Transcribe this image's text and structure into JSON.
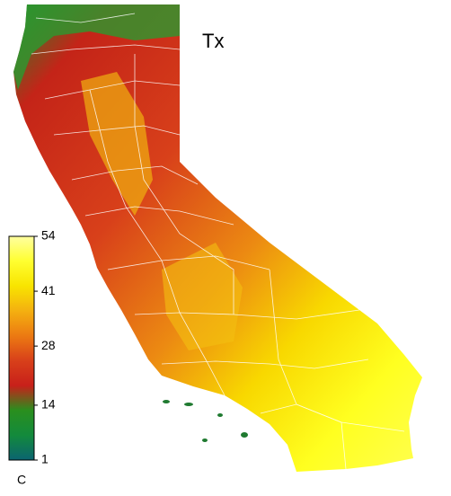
{
  "title": "Tx",
  "colorbar": {
    "unit": "C",
    "range": [
      1,
      54
    ],
    "ticks": [
      1,
      14,
      28,
      41,
      54
    ],
    "colors": [
      "#0b6470",
      "#138a3c",
      "#2a8f1e",
      "#c8201a",
      "#d8401a",
      "#ec7a12",
      "#f4b010",
      "#f8e400",
      "#ffff30",
      "#ffffa0"
    ]
  }
}
